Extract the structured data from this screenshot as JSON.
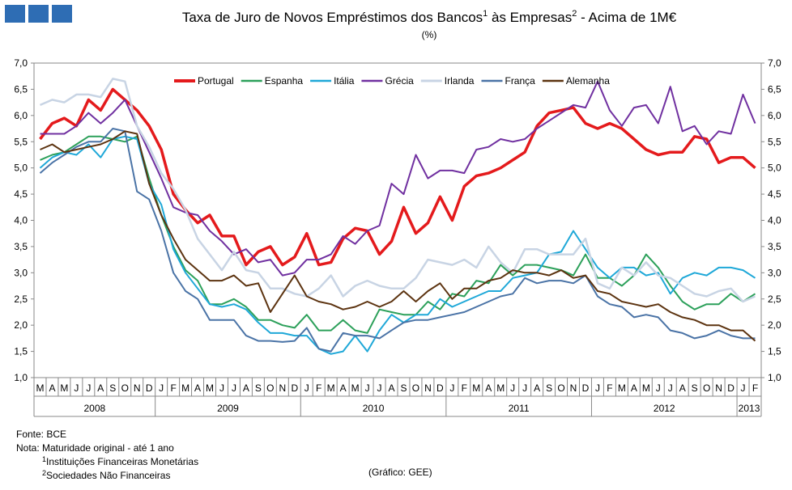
{
  "chart_data": {
    "type": "line",
    "title_parts": [
      "Taxa de Juro de Novos Empréstimos dos Bancos",
      "1",
      " às Empresas",
      "2",
      " - Acima de 1M€"
    ],
    "subtitle": "(%)",
    "category_groups": [
      {
        "label": "2008",
        "categories": [
          "M",
          "A",
          "M",
          "J",
          "J",
          "A",
          "S",
          "O",
          "N",
          "D"
        ]
      },
      {
        "label": "2009",
        "categories": [
          "J",
          "F",
          "M",
          "A",
          "M",
          "J",
          "J",
          "A",
          "S",
          "O",
          "N",
          "D"
        ]
      },
      {
        "label": "2010",
        "categories": [
          "J",
          "F",
          "M",
          "A",
          "M",
          "J",
          "J",
          "A",
          "S",
          "O",
          "N",
          "D"
        ]
      },
      {
        "label": "2011",
        "categories": [
          "J",
          "F",
          "M",
          "A",
          "M",
          "J",
          "J",
          "A",
          "S",
          "O",
          "N",
          "D"
        ]
      },
      {
        "label": "2012",
        "categories": [
          "J",
          "F",
          "M",
          "A",
          "M",
          "J",
          "J",
          "A",
          "S",
          "O",
          "N",
          "D"
        ]
      },
      {
        "label": "2013",
        "categories": [
          "J",
          "F"
        ]
      }
    ],
    "ylim": [
      1,
      7
    ],
    "yticks": [
      {
        "value": 1,
        "label": "1,0"
      },
      {
        "value": 1.5,
        "label": "1,5"
      },
      {
        "value": 2,
        "label": "2,0"
      },
      {
        "value": 2.5,
        "label": "2,5"
      },
      {
        "value": 3,
        "label": "3,0"
      },
      {
        "value": 3.5,
        "label": "3,5"
      },
      {
        "value": 4,
        "label": "4,0"
      },
      {
        "value": 4.5,
        "label": "4,5"
      },
      {
        "value": 5,
        "label": "5,0"
      },
      {
        "value": 5.5,
        "label": "5,5"
      },
      {
        "value": 6,
        "label": "6,0"
      },
      {
        "value": 6.5,
        "label": "6,5"
      },
      {
        "value": 7,
        "label": "7,0"
      }
    ],
    "legend": "top",
    "series": [
      {
        "name": "Portugal",
        "color": "#e41a1c",
        "width": 3.5,
        "values": [
          5.55,
          5.85,
          5.95,
          5.8,
          6.3,
          6.1,
          6.5,
          6.3,
          6.1,
          5.8,
          5.35,
          4.5,
          4.2,
          3.95,
          4.1,
          3.7,
          3.7,
          3.15,
          3.4,
          3.5,
          3.15,
          3.3,
          3.75,
          3.15,
          3.2,
          3.65,
          3.85,
          3.8,
          3.35,
          3.6,
          4.25,
          3.75,
          3.95,
          4.45,
          4.0,
          4.65,
          4.85,
          4.9,
          5.0,
          5.15,
          5.3,
          5.8,
          6.05,
          6.1,
          6.15,
          5.85,
          5.75,
          5.85,
          5.75,
          5.55,
          5.35,
          5.25,
          5.3,
          5.3,
          5.6,
          5.55,
          5.1,
          5.2,
          5.2,
          5.0
        ]
      },
      {
        "name": "Espanha",
        "color": "#2ca05a",
        "width": 2,
        "values": [
          5.15,
          5.25,
          5.3,
          5.45,
          5.6,
          5.6,
          5.55,
          5.5,
          5.6,
          4.8,
          4.1,
          3.5,
          3.05,
          2.85,
          2.4,
          2.4,
          2.5,
          2.35,
          2.1,
          2.1,
          2.0,
          1.95,
          2.2,
          1.9,
          1.9,
          2.1,
          1.9,
          1.85,
          2.3,
          2.25,
          2.2,
          2.2,
          2.45,
          2.3,
          2.6,
          2.55,
          2.85,
          2.8,
          3.15,
          2.95,
          3.15,
          3.15,
          3.1,
          3.05,
          2.95,
          3.35,
          2.9,
          2.9,
          2.75,
          2.95,
          3.35,
          3.1,
          2.75,
          2.45,
          2.3,
          2.4,
          2.4,
          2.6,
          2.45,
          2.6
        ]
      },
      {
        "name": "Itália",
        "color": "#1fa8d8",
        "width": 2,
        "values": [
          5.0,
          5.2,
          5.3,
          5.25,
          5.45,
          5.2,
          5.55,
          5.6,
          5.55,
          4.7,
          4.3,
          3.45,
          3.0,
          2.7,
          2.4,
          2.35,
          2.4,
          2.3,
          2.05,
          1.85,
          1.85,
          1.8,
          1.8,
          1.55,
          1.45,
          1.5,
          1.8,
          1.5,
          1.9,
          2.2,
          2.05,
          2.2,
          2.2,
          2.5,
          2.35,
          2.45,
          2.55,
          2.65,
          2.65,
          2.9,
          2.95,
          3.0,
          3.35,
          3.4,
          3.8,
          3.45,
          3.1,
          2.9,
          3.1,
          3.1,
          2.95,
          3.0,
          2.6,
          2.9,
          3.0,
          2.95,
          3.1,
          3.1,
          3.05,
          2.9
        ]
      },
      {
        "name": "Grécia",
        "color": "#7030a0",
        "width": 2,
        "values": [
          5.65,
          5.65,
          5.65,
          5.8,
          6.05,
          5.85,
          6.05,
          6.3,
          5.8,
          5.3,
          4.8,
          4.25,
          4.15,
          4.1,
          3.8,
          3.6,
          3.35,
          3.45,
          3.2,
          3.25,
          2.95,
          3.0,
          3.25,
          3.25,
          3.35,
          3.7,
          3.55,
          3.8,
          3.9,
          4.7,
          4.5,
          5.25,
          4.8,
          4.95,
          4.95,
          4.9,
          5.35,
          5.4,
          5.55,
          5.5,
          5.55,
          5.75,
          5.9,
          6.05,
          6.2,
          6.15,
          6.65,
          6.1,
          5.8,
          6.15,
          6.2,
          5.85,
          6.55,
          5.7,
          5.8,
          5.45,
          5.7,
          5.65,
          6.4,
          5.85
        ]
      },
      {
        "name": "Irlanda",
        "color": "#c8d4e4",
        "width": 2.5,
        "values": [
          6.2,
          6.3,
          6.25,
          6.4,
          6.4,
          6.35,
          6.7,
          6.65,
          5.8,
          5.4,
          4.9,
          4.6,
          4.2,
          3.65,
          3.35,
          3.05,
          3.4,
          3.05,
          3.0,
          2.7,
          2.7,
          2.6,
          2.55,
          2.7,
          2.95,
          2.55,
          2.75,
          2.85,
          2.75,
          2.7,
          2.7,
          2.9,
          3.25,
          3.2,
          3.15,
          3.25,
          3.1,
          3.5,
          3.2,
          3.0,
          3.45,
          3.45,
          3.35,
          3.35,
          3.35,
          3.65,
          2.8,
          2.7,
          3.1,
          2.95,
          3.2,
          2.95,
          2.9,
          2.75,
          2.6,
          2.55,
          2.65,
          2.7,
          2.45,
          2.55
        ]
      },
      {
        "name": "França",
        "color": "#4a73a6",
        "width": 2,
        "values": [
          4.9,
          5.1,
          5.25,
          5.4,
          5.5,
          5.5,
          5.75,
          5.7,
          4.55,
          4.4,
          3.8,
          3.0,
          2.65,
          2.5,
          2.1,
          2.1,
          2.1,
          1.8,
          1.7,
          1.7,
          1.68,
          1.7,
          1.95,
          1.55,
          1.5,
          1.85,
          1.8,
          1.8,
          1.75,
          1.9,
          2.05,
          2.1,
          2.1,
          2.15,
          2.2,
          2.25,
          2.35,
          2.45,
          2.55,
          2.6,
          2.9,
          2.8,
          2.85,
          2.85,
          2.8,
          2.95,
          2.55,
          2.4,
          2.35,
          2.15,
          2.2,
          2.15,
          1.9,
          1.85,
          1.75,
          1.8,
          1.9,
          1.8,
          1.75,
          1.75
        ]
      },
      {
        "name": "Alemanha",
        "color": "#5c3310",
        "width": 2,
        "values": [
          5.35,
          5.45,
          5.3,
          5.35,
          5.4,
          5.45,
          5.55,
          5.7,
          5.65,
          4.7,
          4.1,
          3.65,
          3.25,
          3.05,
          2.85,
          2.85,
          2.95,
          2.75,
          2.8,
          2.25,
          2.6,
          2.95,
          2.55,
          2.45,
          2.4,
          2.3,
          2.35,
          2.45,
          2.35,
          2.45,
          2.65,
          2.45,
          2.65,
          2.8,
          2.5,
          2.7,
          2.7,
          2.85,
          2.9,
          3.05,
          3.0,
          3.0,
          2.95,
          3.05,
          2.9,
          2.95,
          2.65,
          2.6,
          2.45,
          2.4,
          2.35,
          2.4,
          2.25,
          2.15,
          2.1,
          2.0,
          2.0,
          1.9,
          1.9,
          1.7
        ]
      }
    ]
  },
  "footer": {
    "source": "Fonte: BCE",
    "note": "Nota: Maturidade original - até 1 ano",
    "footnotes": [
      {
        "mark": "1",
        "text": "Instituições Financeiras Monetárias"
      },
      {
        "mark": "2",
        "text": "Sociedades Não Financeiras"
      }
    ],
    "credit": "(Gráfico: GEE)"
  }
}
